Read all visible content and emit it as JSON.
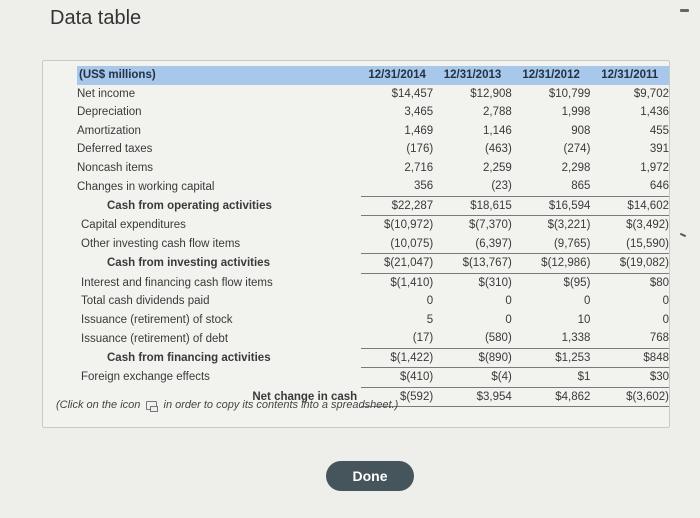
{
  "window": {
    "title": "Data table"
  },
  "table": {
    "unit_label": "(US$ millions)",
    "columns": [
      "12/31/2014",
      "12/31/2013",
      "12/31/2012",
      "12/31/2011"
    ],
    "rows": [
      {
        "label": "Net income",
        "values": [
          "$14,457",
          "$12,908",
          "$10,799",
          "$9,702"
        ]
      },
      {
        "label": "Depreciation",
        "values": [
          "3,465",
          "2,788",
          "1,998",
          "1,436"
        ]
      },
      {
        "label": "Amortization",
        "values": [
          "1,469",
          "1,146",
          "908",
          "455"
        ]
      },
      {
        "label": "Deferred taxes",
        "values": [
          "(176)",
          "(463)",
          "(274)",
          "391"
        ]
      },
      {
        "label": "Noncash items",
        "values": [
          "2,716",
          "2,259",
          "2,298",
          "1,972"
        ]
      },
      {
        "label": "Changes in working capital",
        "values": [
          "356",
          "(23)",
          "865",
          "646"
        ]
      },
      {
        "label": "Cash from operating activities",
        "values": [
          "$22,287",
          "$18,615",
          "$16,594",
          "$14,602"
        ]
      },
      {
        "label": "Capital expenditures",
        "values": [
          "$(10,972)",
          "$(7,370)",
          "$(3,221)",
          "$(3,492)"
        ]
      },
      {
        "label": "Other investing cash flow items",
        "values": [
          "(10,075)",
          "(6,397)",
          "(9,765)",
          "(15,590)"
        ]
      },
      {
        "label": "Cash from investing activities",
        "values": [
          "$(21,047)",
          "$(13,767)",
          "$(12,986)",
          "$(19,082)"
        ]
      },
      {
        "label": "Interest and financing cash flow items",
        "values": [
          "$(1,410)",
          "$(310)",
          "$(95)",
          "$80"
        ]
      },
      {
        "label": "Total cash dividends paid",
        "values": [
          "0",
          "0",
          "0",
          "0"
        ]
      },
      {
        "label": "Issuance (retirement) of stock",
        "values": [
          "5",
          "0",
          "10",
          "0"
        ]
      },
      {
        "label": "Issuance (retirement) of debt",
        "values": [
          "(17)",
          "(580)",
          "1,338",
          "768"
        ]
      },
      {
        "label": "Cash from financing activities",
        "values": [
          "$(1,422)",
          "$(890)",
          "$1,253",
          "$848"
        ]
      },
      {
        "label": "Foreign exchange effects",
        "values": [
          "$(410)",
          "$(4)",
          "$1",
          "$30"
        ]
      },
      {
        "label": "Net change in cash",
        "values": [
          "$(592)",
          "$3,954",
          "$4,862",
          "$(3,602)"
        ]
      }
    ]
  },
  "footnote": {
    "before_icon": "(Click on the icon",
    "after_icon": "in order to copy its contents into a spreadsheet.)",
    "icon": "copy-spreadsheet-icon"
  },
  "buttons": {
    "done": "Done"
  }
}
